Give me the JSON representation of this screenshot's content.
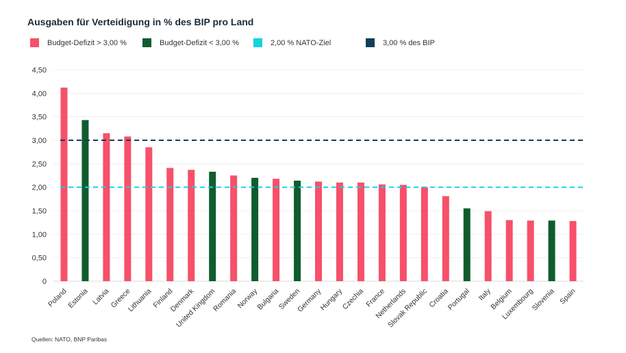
{
  "title": "Ausgaben für Verteidigung in % des BIP pro Land",
  "legend": [
    {
      "label": "Budget-Defizit > 3,00 %",
      "color": "#f7506a",
      "kind": "swatch"
    },
    {
      "label": "Budget-Defizit < 3,00 %",
      "color": "#0f5c2f",
      "kind": "swatch"
    },
    {
      "label": "2,00 % NATO-Ziel",
      "color": "#15d3dd",
      "kind": "swatch"
    },
    {
      "label": "3,00 % des BIP",
      "color": "#0e4057",
      "kind": "swatch"
    }
  ],
  "source": "Quellen: NATO, BNP Paribas",
  "chart_data": {
    "type": "bar",
    "title": "Ausgaben für Verteidigung in % des BIP pro Land",
    "xlabel": "",
    "ylabel": "",
    "ylim": [
      0,
      4.5
    ],
    "yticks": [
      0,
      0.5,
      1.0,
      1.5,
      2.0,
      2.5,
      3.0,
      3.5,
      4.0,
      4.5
    ],
    "ytick_labels": [
      "0",
      "0,50",
      "1,00",
      "1,50",
      "2,00",
      "2,50",
      "3,00",
      "3,50",
      "4,00",
      "4,50"
    ],
    "grid": true,
    "categories": [
      "Poland",
      "Estonia",
      "Latvia",
      "Greece",
      "Lithuania",
      "Finland",
      "Denmark",
      "United Kingdom",
      "Romania",
      "Norway",
      "Bulgaria",
      "Sweden",
      "Germany",
      "Hungary",
      "Czechia",
      "France",
      "Netherlands",
      "Slovak Republic",
      "Croatia",
      "Portugal",
      "Italy",
      "Belgium",
      "Luxembourg",
      "Slovenia",
      "Spain"
    ],
    "values": [
      4.12,
      3.43,
      3.15,
      3.08,
      2.85,
      2.41,
      2.37,
      2.33,
      2.25,
      2.2,
      2.18,
      2.14,
      2.12,
      2.1,
      2.1,
      2.06,
      2.05,
      2.0,
      1.81,
      1.55,
      1.49,
      1.3,
      1.29,
      1.29,
      1.28
    ],
    "groups": [
      "deficit_above_3",
      "deficit_below_3",
      "deficit_above_3",
      "deficit_above_3",
      "deficit_above_3",
      "deficit_above_3",
      "deficit_above_3",
      "deficit_below_3",
      "deficit_above_3",
      "deficit_below_3",
      "deficit_above_3",
      "deficit_below_3",
      "deficit_above_3",
      "deficit_above_3",
      "deficit_above_3",
      "deficit_above_3",
      "deficit_above_3",
      "deficit_above_3",
      "deficit_above_3",
      "deficit_below_3",
      "deficit_above_3",
      "deficit_above_3",
      "deficit_above_3",
      "deficit_below_3",
      "deficit_above_3"
    ],
    "group_colors": {
      "deficit_above_3": "#f7506a",
      "deficit_below_3": "#0f5c2f"
    },
    "reference_lines": [
      {
        "name": "2,00 % NATO-Ziel",
        "value": 2.0,
        "color": "#15d3dd",
        "style": "dashed"
      },
      {
        "name": "3,00 % des BIP",
        "value": 3.0,
        "color": "#0e4057",
        "style": "dashed"
      }
    ]
  }
}
